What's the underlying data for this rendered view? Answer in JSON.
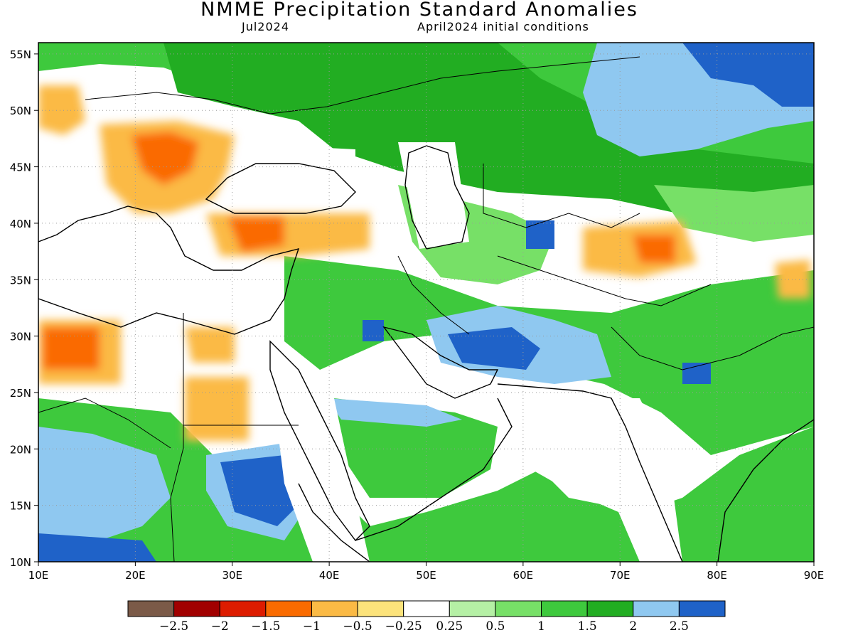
{
  "header": {
    "title": "NMME Precipitation Standard Anomalies",
    "target_month": "Jul2024",
    "initial_conditions": "April2024 initial conditions"
  },
  "map": {
    "lon_range": [
      10,
      90
    ],
    "lat_range": [
      10,
      56
    ],
    "lon_ticks": [
      "10E",
      "20E",
      "30E",
      "40E",
      "50E",
      "60E",
      "70E",
      "80E",
      "90E"
    ],
    "lat_ticks": [
      "10N",
      "15N",
      "20N",
      "25N",
      "30N",
      "35N",
      "40N",
      "45N",
      "50N",
      "55N"
    ],
    "gridlines": "dotted",
    "anomaly_regions": [
      {
        "label": "dry",
        "lon": 24,
        "lat": 46,
        "value": -1.0
      },
      {
        "label": "dry",
        "lon": 35,
        "lat": 38.5,
        "value": -1.0
      },
      {
        "label": "dry",
        "lon": 13,
        "lat": 28,
        "value": -1.5
      },
      {
        "label": "dry",
        "lon": 28,
        "lat": 24,
        "value": -0.5
      },
      {
        "label": "dry",
        "lon": 73,
        "lat": 37,
        "value": -1.0
      },
      {
        "label": "wet",
        "lon": 85,
        "lat": 52,
        "value": 2.5
      },
      {
        "label": "wet",
        "lon": 37,
        "lat": 17,
        "value": 2.5
      },
      {
        "label": "wet",
        "lon": 62,
        "lat": 28,
        "value": 2.5
      },
      {
        "label": "wet",
        "lon": 17,
        "lat": 11,
        "value": 2.5
      },
      {
        "label": "wet",
        "lon": 50,
        "lat": 20,
        "value": 1.5
      }
    ]
  },
  "colorbar": {
    "labels": [
      "-2.5",
      "-2",
      "-1.5",
      "-1",
      "-0.5",
      "-0.25",
      "0.25",
      "0.5",
      "1",
      "1.5",
      "2",
      "2.5"
    ],
    "colors": [
      "#7b5a48",
      "#a10000",
      "#dd1c00",
      "#fa6b00",
      "#fbba45",
      "#fce37b",
      "#ffffff",
      "#b5f0a5",
      "#77e067",
      "#3ec93d",
      "#22ad22",
      "#8fc8f0",
      "#1f62c8"
    ]
  }
}
